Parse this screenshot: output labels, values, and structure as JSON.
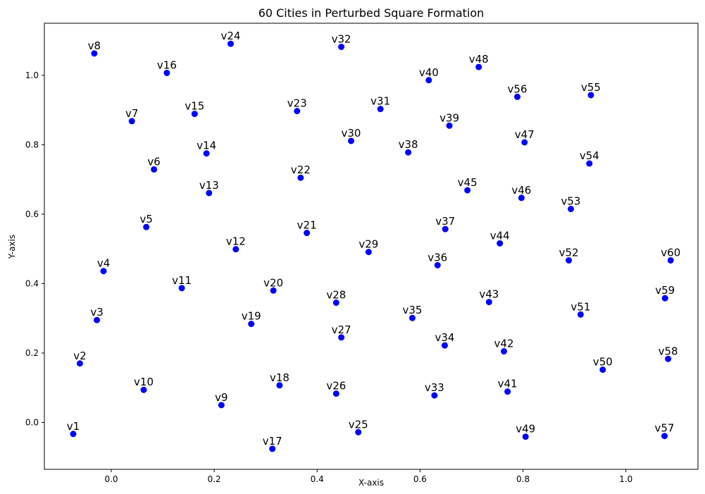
{
  "chart_data": {
    "type": "scatter",
    "title": "60 Cities in Perturbed Square Formation",
    "xlabel": "X-axis",
    "ylabel": "Y-axis",
    "xlim": [
      -0.13,
      1.14
    ],
    "ylim": [
      -0.135,
      1.15
    ],
    "xticks": [
      0.0,
      0.2,
      0.4,
      0.6,
      0.8,
      1.0
    ],
    "xtick_labels": [
      "0.0",
      "0.2",
      "0.4",
      "0.6",
      "0.8",
      "1.0"
    ],
    "yticks": [
      0.0,
      0.2,
      0.4,
      0.6,
      0.8,
      1.0
    ],
    "ytick_labels": [
      "0.0",
      "0.2",
      "0.4",
      "0.6",
      "0.8",
      "1.0"
    ],
    "grid": false,
    "marker_color": "#0000ff",
    "points": [
      {
        "label": "v1",
        "x": -0.074,
        "y": -0.033
      },
      {
        "label": "v2",
        "x": -0.061,
        "y": 0.17
      },
      {
        "label": "v3",
        "x": -0.028,
        "y": 0.295
      },
      {
        "label": "v4",
        "x": -0.015,
        "y": 0.436
      },
      {
        "label": "v5",
        "x": 0.068,
        "y": 0.563
      },
      {
        "label": "v6",
        "x": 0.083,
        "y": 0.729
      },
      {
        "label": "v7",
        "x": 0.04,
        "y": 0.868
      },
      {
        "label": "v8",
        "x": -0.033,
        "y": 1.063
      },
      {
        "label": "v9",
        "x": 0.214,
        "y": 0.05
      },
      {
        "label": "v10",
        "x": 0.063,
        "y": 0.094
      },
      {
        "label": "v11",
        "x": 0.137,
        "y": 0.387
      },
      {
        "label": "v12",
        "x": 0.242,
        "y": 0.499
      },
      {
        "label": "v13",
        "x": 0.19,
        "y": 0.661
      },
      {
        "label": "v14",
        "x": 0.185,
        "y": 0.775
      },
      {
        "label": "v15",
        "x": 0.162,
        "y": 0.889
      },
      {
        "label": "v16",
        "x": 0.108,
        "y": 1.007
      },
      {
        "label": "v17",
        "x": 0.313,
        "y": -0.076
      },
      {
        "label": "v18",
        "x": 0.327,
        "y": 0.107
      },
      {
        "label": "v19",
        "x": 0.272,
        "y": 0.284
      },
      {
        "label": "v20",
        "x": 0.315,
        "y": 0.38
      },
      {
        "label": "v21",
        "x": 0.38,
        "y": 0.546
      },
      {
        "label": "v22",
        "x": 0.368,
        "y": 0.705
      },
      {
        "label": "v23",
        "x": 0.361,
        "y": 0.897
      },
      {
        "label": "v24",
        "x": 0.232,
        "y": 1.091
      },
      {
        "label": "v25",
        "x": 0.48,
        "y": -0.028
      },
      {
        "label": "v26",
        "x": 0.437,
        "y": 0.083
      },
      {
        "label": "v27",
        "x": 0.447,
        "y": 0.245
      },
      {
        "label": "v28",
        "x": 0.437,
        "y": 0.345
      },
      {
        "label": "v29",
        "x": 0.5,
        "y": 0.491
      },
      {
        "label": "v30",
        "x": 0.466,
        "y": 0.811
      },
      {
        "label": "v31",
        "x": 0.523,
        "y": 0.903
      },
      {
        "label": "v32",
        "x": 0.447,
        "y": 1.082
      },
      {
        "label": "v33",
        "x": 0.628,
        "y": 0.078
      },
      {
        "label": "v34",
        "x": 0.648,
        "y": 0.222
      },
      {
        "label": "v35",
        "x": 0.585,
        "y": 0.301
      },
      {
        "label": "v36",
        "x": 0.634,
        "y": 0.453
      },
      {
        "label": "v37",
        "x": 0.649,
        "y": 0.557
      },
      {
        "label": "v38",
        "x": 0.577,
        "y": 0.778
      },
      {
        "label": "v39",
        "x": 0.657,
        "y": 0.855
      },
      {
        "label": "v40",
        "x": 0.617,
        "y": 0.986
      },
      {
        "label": "v41",
        "x": 0.77,
        "y": 0.089
      },
      {
        "label": "v42",
        "x": 0.763,
        "y": 0.205
      },
      {
        "label": "v43",
        "x": 0.734,
        "y": 0.347
      },
      {
        "label": "v44",
        "x": 0.755,
        "y": 0.516
      },
      {
        "label": "v45",
        "x": 0.692,
        "y": 0.669
      },
      {
        "label": "v46",
        "x": 0.797,
        "y": 0.647
      },
      {
        "label": "v47",
        "x": 0.803,
        "y": 0.807
      },
      {
        "label": "v48",
        "x": 0.714,
        "y": 1.024
      },
      {
        "label": "v49",
        "x": 0.805,
        "y": -0.041
      },
      {
        "label": "v50",
        "x": 0.955,
        "y": 0.152
      },
      {
        "label": "v51",
        "x": 0.912,
        "y": 0.311
      },
      {
        "label": "v52",
        "x": 0.889,
        "y": 0.467
      },
      {
        "label": "v53",
        "x": 0.893,
        "y": 0.615
      },
      {
        "label": "v54",
        "x": 0.929,
        "y": 0.746
      },
      {
        "label": "v55",
        "x": 0.932,
        "y": 0.943
      },
      {
        "label": "v56",
        "x": 0.789,
        "y": 0.938
      },
      {
        "label": "v57",
        "x": 1.075,
        "y": -0.039
      },
      {
        "label": "v58",
        "x": 1.082,
        "y": 0.183
      },
      {
        "label": "v59",
        "x": 1.076,
        "y": 0.358
      },
      {
        "label": "v60",
        "x": 1.087,
        "y": 0.467
      }
    ]
  }
}
